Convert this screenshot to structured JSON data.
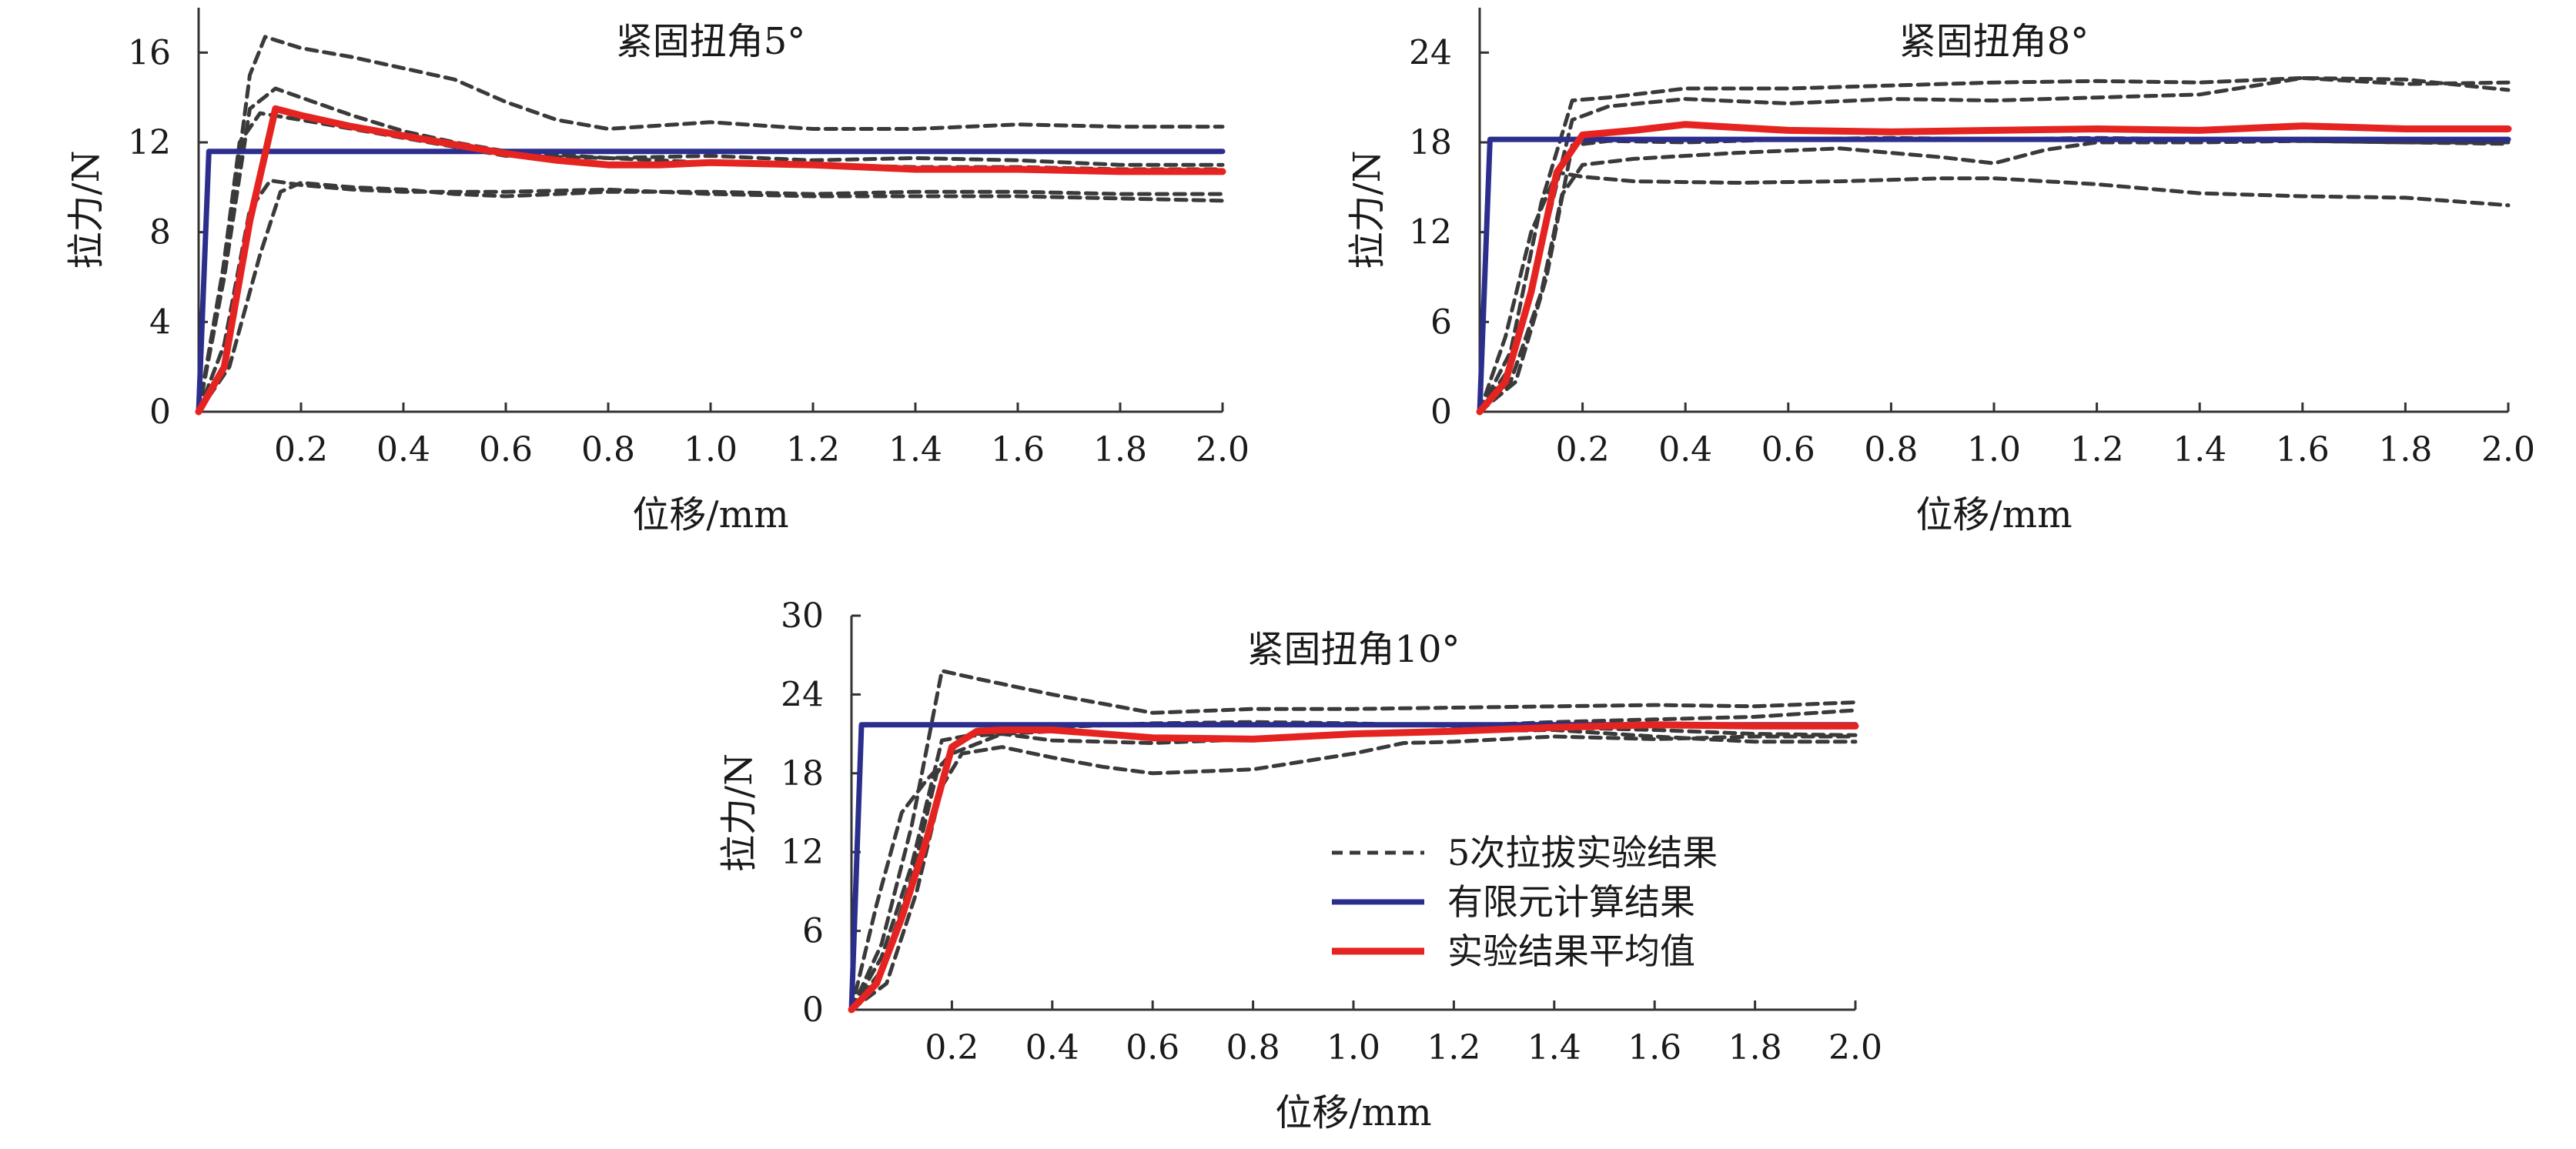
{
  "legend": {
    "experiment_runs": "5次拉拔实验结果",
    "fem": "有限元计算结果",
    "average": "实验结果平均值"
  },
  "colors": {
    "experiment_runs": "#3a3a3a",
    "fem": "#2b2e8c",
    "average": "#e52421",
    "axis": "#333333"
  },
  "chart_data": [
    {
      "type": "line",
      "title": "紧固扭角5°",
      "xlabel": "位移/mm",
      "ylabel": "拉力/N",
      "xlim": [
        0,
        2.0
      ],
      "ylim": [
        0,
        18
      ],
      "x_ticks": [
        0.2,
        0.4,
        0.6,
        0.8,
        1.0,
        1.2,
        1.4,
        1.6,
        1.8,
        2.0
      ],
      "y_ticks": [
        0,
        4,
        8,
        12,
        16
      ],
      "series": [
        {
          "name": "有限元计算结果",
          "role": "fem",
          "x": [
            0,
            0.02,
            0.025,
            2.0
          ],
          "y": [
            0,
            11.6,
            11.6,
            11.6
          ]
        },
        {
          "name": "实验结果平均值",
          "role": "average",
          "x": [
            0,
            0.05,
            0.1,
            0.15,
            0.2,
            0.3,
            0.4,
            0.5,
            0.6,
            0.7,
            0.8,
            0.9,
            1.0,
            1.2,
            1.4,
            1.6,
            1.8,
            2.0
          ],
          "y": [
            0,
            2,
            8.5,
            13.5,
            13.2,
            12.7,
            12.3,
            11.9,
            11.5,
            11.2,
            11.0,
            11.0,
            11.1,
            11.0,
            10.8,
            10.8,
            10.7,
            10.7
          ]
        },
        {
          "role": "run",
          "x": [
            0,
            0.06,
            0.1,
            0.13,
            0.2,
            0.3,
            0.4,
            0.5,
            0.6,
            0.7,
            0.8,
            1.0,
            1.2,
            1.4,
            1.6,
            1.8,
            2.0
          ],
          "y": [
            0,
            8,
            15,
            16.7,
            16.2,
            15.8,
            15.3,
            14.8,
            13.8,
            13.0,
            12.6,
            12.9,
            12.6,
            12.6,
            12.8,
            12.7,
            12.7
          ]
        },
        {
          "role": "run",
          "x": [
            0,
            0.05,
            0.1,
            0.15,
            0.2,
            0.3,
            0.4,
            0.5,
            0.6,
            0.8,
            1.0,
            1.2,
            1.4,
            1.6,
            1.8,
            2.0
          ],
          "y": [
            0,
            6,
            13.5,
            14.4,
            14.0,
            13.2,
            12.5,
            12.0,
            11.6,
            11.3,
            11.4,
            11.2,
            11.3,
            11.2,
            11.0,
            11.0
          ]
        },
        {
          "role": "run",
          "x": [
            0,
            0.04,
            0.08,
            0.12,
            0.2,
            0.3,
            0.4,
            0.5,
            0.6,
            0.8,
            1.0,
            1.2,
            1.4,
            1.6,
            1.8,
            2.0
          ],
          "y": [
            0,
            5,
            12,
            13.3,
            13.0,
            12.6,
            12.2,
            11.8,
            11.4,
            11.3,
            11.1,
            11.0,
            10.9,
            10.9,
            10.8,
            10.8
          ]
        },
        {
          "role": "run",
          "x": [
            0,
            0.05,
            0.1,
            0.14,
            0.2,
            0.3,
            0.4,
            0.5,
            0.6,
            0.8,
            1.0,
            1.2,
            1.4,
            1.6,
            1.8,
            2.0
          ],
          "y": [
            0,
            3,
            9,
            10.3,
            10.1,
            9.9,
            9.8,
            9.8,
            9.8,
            9.9,
            9.7,
            9.6,
            9.6,
            9.6,
            9.5,
            9.4
          ]
        },
        {
          "role": "run",
          "x": [
            0,
            0.06,
            0.12,
            0.16,
            0.2,
            0.3,
            0.4,
            0.5,
            0.6,
            0.8,
            1.0,
            1.2,
            1.4,
            1.6,
            1.8,
            2.0
          ],
          "y": [
            0,
            2,
            7,
            9.8,
            10.2,
            10.0,
            9.9,
            9.7,
            9.6,
            9.8,
            9.8,
            9.7,
            9.8,
            9.8,
            9.7,
            9.7
          ]
        }
      ]
    },
    {
      "type": "line",
      "title": "紧固扭角8°",
      "xlabel": "位移/mm",
      "ylabel": "拉力/N",
      "xlim": [
        0,
        2.0
      ],
      "ylim": [
        0,
        27
      ],
      "x_ticks": [
        0.2,
        0.4,
        0.6,
        0.8,
        1.0,
        1.2,
        1.4,
        1.6,
        1.8,
        2.0
      ],
      "y_ticks": [
        0,
        6,
        12,
        18,
        24
      ],
      "series": [
        {
          "name": "有限元计算结果",
          "role": "fem",
          "x": [
            0,
            0.02,
            0.025,
            2.0
          ],
          "y": [
            0,
            18.2,
            18.2,
            18.2
          ]
        },
        {
          "name": "实验结果平均值",
          "role": "average",
          "x": [
            0,
            0.05,
            0.1,
            0.15,
            0.2,
            0.3,
            0.4,
            0.5,
            0.6,
            0.8,
            1.0,
            1.2,
            1.4,
            1.6,
            1.8,
            2.0
          ],
          "y": [
            0,
            2,
            8,
            16,
            18.5,
            18.8,
            19.2,
            19.0,
            18.8,
            18.7,
            18.8,
            18.9,
            18.8,
            19.1,
            18.9,
            18.9
          ]
        },
        {
          "role": "run",
          "x": [
            0,
            0.06,
            0.12,
            0.18,
            0.25,
            0.3,
            0.4,
            0.6,
            0.8,
            1.0,
            1.2,
            1.4,
            1.6,
            1.8,
            2.0
          ],
          "y": [
            0,
            4,
            14,
            20.8,
            21.0,
            21.2,
            21.6,
            21.6,
            21.8,
            22.0,
            22.1,
            22.0,
            22.3,
            22.2,
            21.5
          ]
        },
        {
          "role": "run",
          "x": [
            0,
            0.06,
            0.12,
            0.18,
            0.25,
            0.4,
            0.6,
            0.8,
            1.0,
            1.2,
            1.4,
            1.6,
            1.8,
            2.0
          ],
          "y": [
            0,
            3,
            11,
            19.5,
            20.4,
            20.9,
            20.6,
            20.9,
            20.8,
            21.0,
            21.2,
            22.3,
            21.9,
            22.0
          ]
        },
        {
          "role": "run",
          "x": [
            0,
            0.05,
            0.1,
            0.15,
            0.2,
            0.3,
            0.5,
            0.7,
            0.9,
            1.0,
            1.2,
            1.4,
            1.6,
            1.8,
            2.0
          ],
          "y": [
            0,
            5,
            12,
            16.0,
            15.7,
            15.4,
            15.3,
            15.4,
            15.6,
            15.6,
            15.2,
            14.6,
            14.4,
            14.3,
            13.8
          ]
        },
        {
          "role": "run",
          "x": [
            0,
            0.06,
            0.12,
            0.16,
            0.2,
            0.3,
            0.5,
            0.7,
            0.9,
            1.0,
            1.1,
            1.2,
            1.4,
            1.6,
            1.8,
            2.0
          ],
          "y": [
            0,
            2,
            8,
            14.5,
            16.5,
            16.9,
            17.3,
            17.6,
            17.0,
            16.6,
            17.5,
            18.0,
            18.0,
            18.1,
            18.0,
            17.9
          ]
        },
        {
          "role": "run",
          "x": [
            0,
            0.07,
            0.13,
            0.18,
            0.25,
            0.4,
            0.6,
            0.8,
            1.0,
            1.2,
            1.4,
            1.6,
            1.8,
            2.0
          ],
          "y": [
            0,
            2,
            9,
            17.8,
            18.1,
            18.0,
            18.2,
            18.3,
            18.2,
            18.3,
            18.2,
            18.1,
            18.0,
            18.0
          ]
        }
      ]
    },
    {
      "type": "line",
      "title": "紧固扭角10°",
      "xlabel": "位移/mm",
      "ylabel": "拉力/N",
      "xlim": [
        0,
        2.0
      ],
      "ylim": [
        0,
        30
      ],
      "x_ticks": [
        0.2,
        0.4,
        0.6,
        0.8,
        1.0,
        1.2,
        1.4,
        1.6,
        1.8,
        2.0
      ],
      "y_ticks": [
        0,
        6,
        12,
        18,
        24,
        30
      ],
      "series": [
        {
          "name": "有限元计算结果",
          "role": "fem",
          "x": [
            0,
            0.02,
            0.025,
            2.0
          ],
          "y": [
            0,
            21.7,
            21.7,
            21.7
          ]
        },
        {
          "name": "实验结果平均值",
          "role": "average",
          "x": [
            0,
            0.05,
            0.1,
            0.15,
            0.2,
            0.25,
            0.3,
            0.4,
            0.6,
            0.8,
            1.0,
            1.2,
            1.4,
            1.6,
            1.8,
            2.0
          ],
          "y": [
            0,
            2,
            7,
            13,
            20,
            21.2,
            21.3,
            21.3,
            20.7,
            20.6,
            21.0,
            21.2,
            21.5,
            21.7,
            21.6,
            21.6
          ]
        },
        {
          "role": "run",
          "x": [
            0,
            0.06,
            0.12,
            0.18,
            0.25,
            0.3,
            0.4,
            0.6,
            0.8,
            1.0,
            1.2,
            1.4,
            1.6,
            1.8,
            2.0
          ],
          "y": [
            0,
            5,
            14,
            25.8,
            25.2,
            24.8,
            24.0,
            22.6,
            22.9,
            22.9,
            23.0,
            23.1,
            23.2,
            23.1,
            23.4
          ]
        },
        {
          "role": "run",
          "x": [
            0,
            0.06,
            0.12,
            0.18,
            0.25,
            0.4,
            0.6,
            0.8,
            1.0,
            1.2,
            1.4,
            1.6,
            1.8,
            2.0
          ],
          "y": [
            0,
            4,
            11,
            20.5,
            21.0,
            21.5,
            21.8,
            21.9,
            21.8,
            21.6,
            21.9,
            22.1,
            22.3,
            22.8
          ]
        },
        {
          "role": "run",
          "x": [
            0,
            0.05,
            0.1,
            0.15,
            0.2,
            0.3,
            0.4,
            0.6,
            0.8,
            1.0,
            1.2,
            1.4,
            1.6,
            1.8,
            2.0
          ],
          "y": [
            0,
            8,
            15,
            17.5,
            19.5,
            21.0,
            21.2,
            20.8,
            20.5,
            21.0,
            21.2,
            21.3,
            20.8,
            20.4,
            20.4
          ]
        },
        {
          "role": "run",
          "x": [
            0,
            0.07,
            0.13,
            0.18,
            0.22,
            0.3,
            0.4,
            0.5,
            0.6,
            0.8,
            1.0,
            1.1,
            1.2,
            1.4,
            1.6,
            1.8,
            2.0
          ],
          "y": [
            0,
            2,
            9,
            17,
            19.5,
            20.0,
            19.2,
            18.5,
            18.0,
            18.3,
            19.5,
            20.3,
            20.4,
            20.8,
            20.6,
            20.8,
            20.8
          ]
        },
        {
          "role": "run",
          "x": [
            0,
            0.06,
            0.12,
            0.17,
            0.22,
            0.3,
            0.4,
            0.6,
            0.8,
            1.0,
            1.2,
            1.4,
            1.6,
            1.8,
            2.0
          ],
          "y": [
            0,
            3,
            10,
            18,
            20.8,
            21.0,
            20.5,
            20.3,
            20.6,
            20.9,
            21.2,
            21.5,
            21.3,
            21.0,
            20.9
          ]
        }
      ]
    }
  ]
}
